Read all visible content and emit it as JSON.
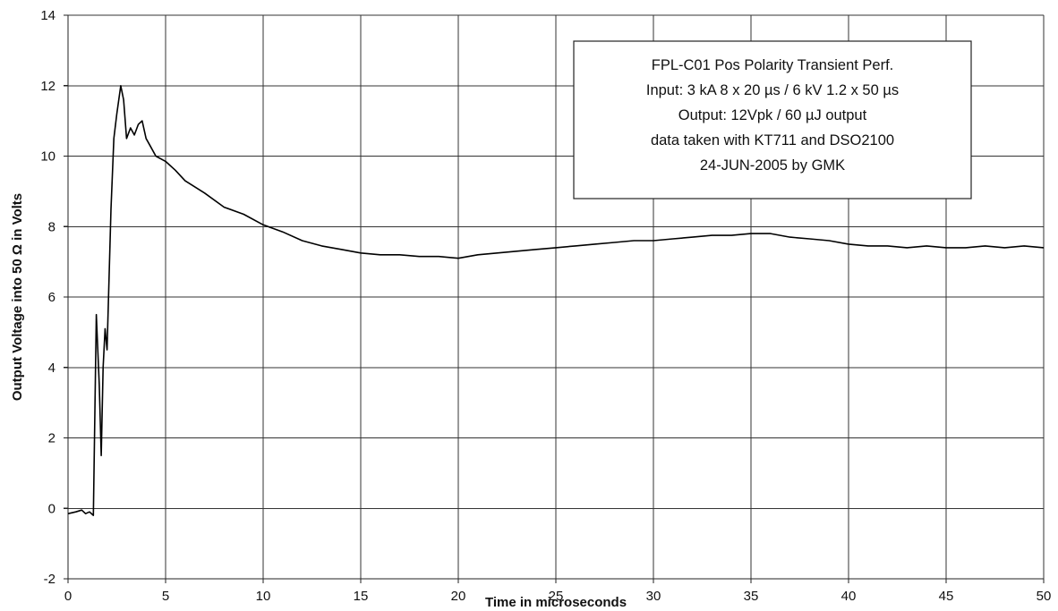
{
  "chart_data": {
    "type": "line",
    "title": "",
    "xlabel": "Time in microseconds",
    "ylabel": "Output Voltage into 50 Ω in Volts",
    "xlim": [
      0,
      50
    ],
    "ylim": [
      -2,
      14
    ],
    "x_ticks": [
      0,
      5,
      10,
      15,
      20,
      25,
      30,
      35,
      40,
      45,
      50
    ],
    "y_ticks": [
      -2,
      0,
      2,
      4,
      6,
      8,
      10,
      12,
      14
    ],
    "grid": true,
    "legend": "none",
    "line_color": "#000000",
    "annotation": {
      "placement": "top-right",
      "lines": [
        "FPL-C01 Pos Polarity Transient Perf.",
        "Input: 3 kA  8 x 20 µs / 6 kV 1.2 x 50 µs",
        "Output: 12Vpk / 60 µJ output",
        "data taken with KT711 and DSO2100",
        "24-JUN-2005 by GMK"
      ]
    },
    "series": [
      {
        "x": [
          0,
          0.4,
          0.7,
          0.9,
          1.1,
          1.3,
          1.45,
          1.6,
          1.7,
          1.8,
          1.9,
          2.0,
          2.1,
          2.2,
          2.35,
          2.5,
          2.7,
          2.85,
          3.0,
          3.2,
          3.4,
          3.6,
          3.8,
          4.0,
          4.2,
          4.5,
          5.0,
          5.5,
          6.0,
          7.0,
          8.0,
          9.0,
          10.0,
          11.0,
          12.0,
          13.0,
          14.0,
          15.0,
          16.0,
          17.0,
          18.0,
          19.0,
          20.0,
          21.0,
          22.0,
          23.0,
          24.0,
          25.0,
          26.0,
          27.0,
          28.0,
          29.0,
          30.0,
          31.0,
          32.0,
          33.0,
          34.0,
          35.0,
          36.0,
          37.0,
          38.0,
          39.0,
          40.0,
          41.0,
          42.0,
          43.0,
          44.0,
          45.0,
          46.0,
          47.0,
          48.0,
          49.0,
          50.0
        ],
        "y": [
          -0.15,
          -0.1,
          -0.05,
          -0.15,
          -0.1,
          -0.2,
          5.5,
          3.5,
          1.5,
          4.0,
          5.1,
          4.5,
          6.5,
          8.5,
          10.5,
          11.2,
          12.0,
          11.6,
          10.5,
          10.8,
          10.6,
          10.9,
          11.0,
          10.5,
          10.3,
          10.0,
          9.85,
          9.6,
          9.3,
          8.95,
          8.55,
          8.35,
          8.05,
          7.85,
          7.6,
          7.45,
          7.35,
          7.25,
          7.2,
          7.2,
          7.15,
          7.15,
          7.1,
          7.2,
          7.25,
          7.3,
          7.35,
          7.4,
          7.45,
          7.5,
          7.55,
          7.6,
          7.6,
          7.65,
          7.7,
          7.75,
          7.75,
          7.8,
          7.8,
          7.7,
          7.65,
          7.6,
          7.5,
          7.45,
          7.45,
          7.4,
          7.45,
          7.4,
          7.4,
          7.45,
          7.4,
          7.45,
          7.4
        ]
      }
    ]
  }
}
